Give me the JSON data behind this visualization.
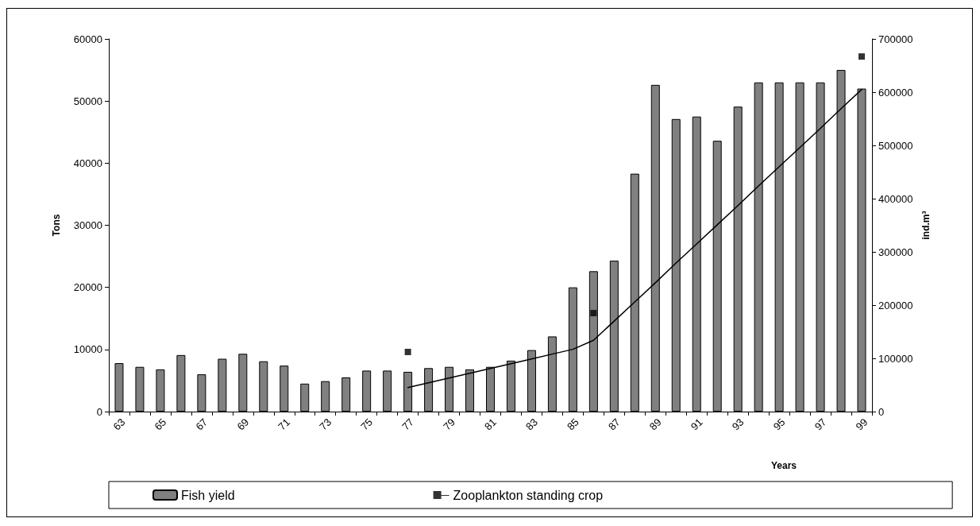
{
  "chart_data": {
    "type": "bar",
    "xlabel": "Years",
    "ylabel": "Tons",
    "y2label": "ind.m³",
    "categories": [
      "63",
      null,
      "65",
      null,
      "67",
      null,
      "69",
      null,
      "71",
      null,
      "73",
      null,
      "75",
      null,
      "77",
      null,
      "79",
      null,
      "81",
      null,
      "83",
      null,
      "85",
      null,
      "87",
      null,
      "89",
      null,
      "91",
      null,
      "93",
      null,
      "95",
      null,
      "97",
      null,
      "99"
    ],
    "ylim": [
      0,
      60000
    ],
    "yticks": [
      0,
      10000,
      20000,
      30000,
      40000,
      50000,
      60000
    ],
    "y2lim": [
      0,
      700000
    ],
    "y2ticks": [
      0,
      100000,
      200000,
      300000,
      400000,
      500000,
      600000,
      700000
    ],
    "series": [
      {
        "name": "Fish yield",
        "color": "#808080",
        "values": [
          7800,
          7200,
          6800,
          9100,
          6000,
          8500,
          9300,
          8100,
          7400,
          4500,
          4900,
          5500,
          6600,
          6600,
          6400,
          7000,
          7200,
          6800,
          7200,
          8200,
          9900,
          12100,
          20000,
          22600,
          24300,
          38300,
          52600,
          47100,
          47500,
          43600,
          49100,
          53000,
          53000,
          53000,
          53000,
          55000,
          52000
        ]
      },
      {
        "type": "line",
        "values": [
          null,
          null,
          null,
          null,
          null,
          null,
          null,
          null,
          null,
          null,
          null,
          null,
          null,
          null,
          45000,
          54000,
          63000,
          72000,
          81000,
          90000,
          99000,
          108000,
          117000,
          134000,
          170000,
          206000,
          242000,
          279000,
          315000,
          351000,
          387000,
          424000,
          460000,
          496000,
          532000,
          569000,
          605000
        ],
        "axis": "y2",
        "color": "#000000",
        "marker": "none",
        "line_style": "solid"
      },
      {
        "name": "Zooplankton standing crop",
        "type": "scatter",
        "values": [
          null,
          null,
          null,
          null,
          null,
          null,
          null,
          null,
          null,
          null,
          null,
          null,
          null,
          null,
          112000,
          null,
          null,
          null,
          null,
          null,
          null,
          null,
          null,
          185000,
          null,
          null,
          null,
          null,
          null,
          null,
          null,
          null,
          null,
          null,
          null,
          null,
          667000
        ],
        "axis": "y2",
        "color": "#000000",
        "marker": "square"
      }
    ],
    "legend": "bottom"
  }
}
